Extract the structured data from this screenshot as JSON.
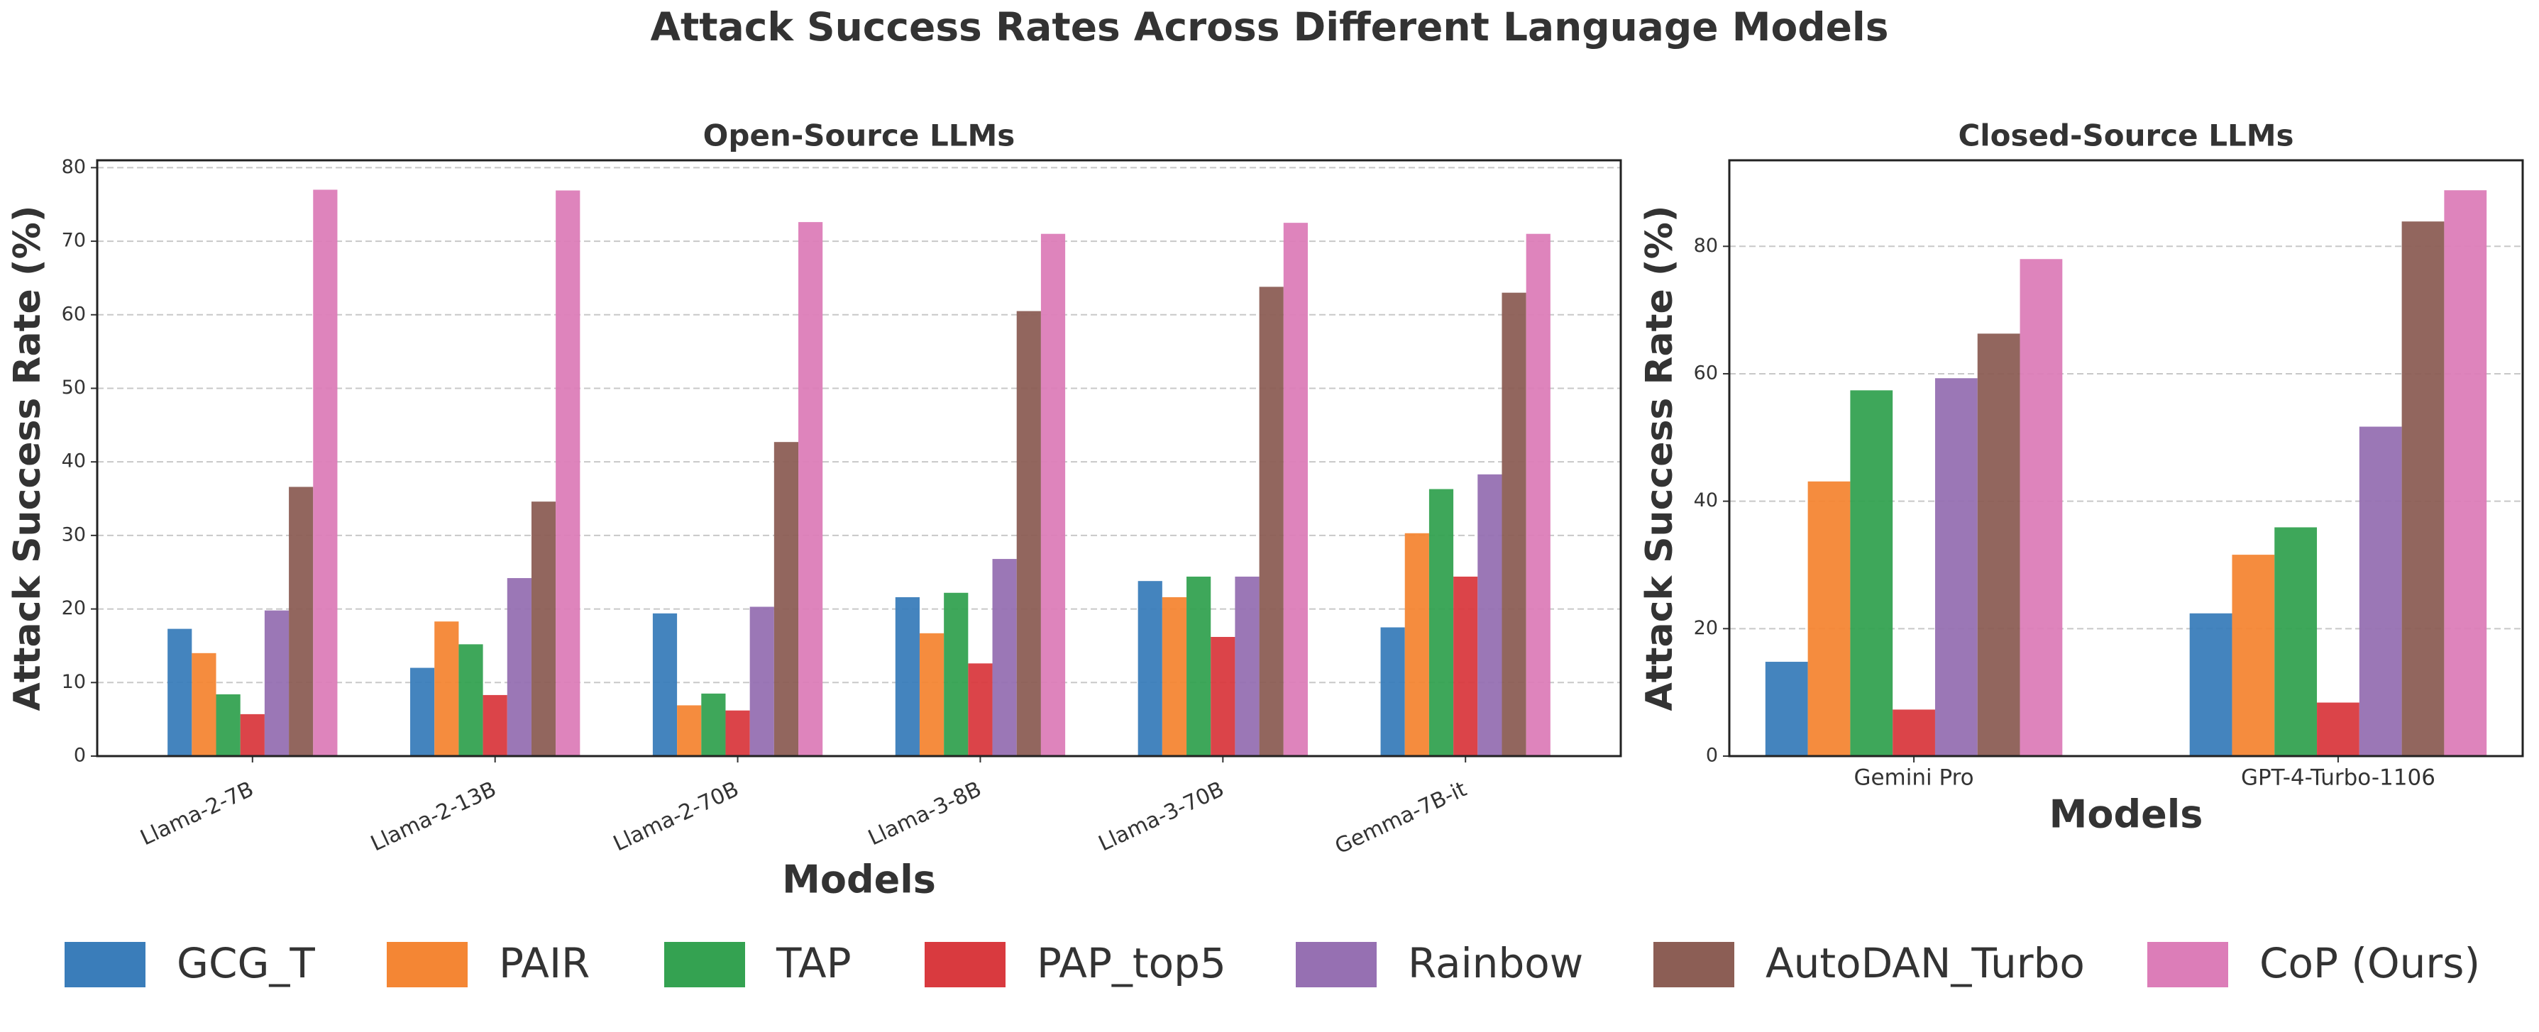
{
  "title": "Attack Success Rates Across Different Language Models",
  "chart_data": [
    {
      "type": "bar",
      "title": "Open-Source LLMs",
      "x_label": "Models",
      "y_label": "Attack Success Rate (%)",
      "categories": [
        "Llama-2-7B",
        "Llama-2-13B",
        "Llama-2-70B",
        "Llama-3-8B",
        "Llama-3-70B",
        "Gemma-7B-it"
      ],
      "series": [
        {
          "name": "GCG_T",
          "color": "#3a7dba",
          "values": [
            17.3,
            12.0,
            19.4,
            21.6,
            23.8,
            17.5
          ]
        },
        {
          "name": "PAIR",
          "color": "#f48634",
          "values": [
            14.0,
            18.3,
            6.9,
            16.7,
            21.6,
            30.3
          ]
        },
        {
          "name": "TAP",
          "color": "#34a251",
          "values": [
            8.4,
            15.2,
            8.5,
            22.2,
            24.4,
            36.3
          ]
        },
        {
          "name": "PAP_top5",
          "color": "#d93a3f",
          "values": [
            5.7,
            8.3,
            6.2,
            12.6,
            16.2,
            24.4
          ]
        },
        {
          "name": "Rainbow",
          "color": "#9670b2",
          "values": [
            19.8,
            24.2,
            20.3,
            26.8,
            24.4,
            38.3
          ]
        },
        {
          "name": "AutoDAN_Turbo",
          "color": "#8c5e55",
          "values": [
            36.6,
            34.6,
            42.7,
            60.5,
            63.8,
            63.0
          ]
        },
        {
          "name": "CoP (Ours)",
          "color": "#dc7db8",
          "values": [
            77.0,
            76.9,
            72.6,
            71.0,
            72.5,
            71.0
          ]
        }
      ],
      "ylim": [
        0,
        81
      ],
      "yticks": [
        0,
        10,
        20,
        30,
        40,
        50,
        60,
        70,
        80
      ],
      "grid": true,
      "x_label_rotation": -25
    },
    {
      "type": "bar",
      "title": "Closed-Source LLMs",
      "x_label": "Models",
      "y_label": "Attack Success Rate (%)",
      "categories": [
        "Gemini Pro",
        "GPT-4-Turbo-1106"
      ],
      "series": [
        {
          "name": "GCG_T",
          "color": "#3a7dba",
          "values": [
            14.8,
            22.4
          ]
        },
        {
          "name": "PAIR",
          "color": "#f48634",
          "values": [
            43.1,
            31.6
          ]
        },
        {
          "name": "TAP",
          "color": "#34a251",
          "values": [
            57.4,
            35.9
          ]
        },
        {
          "name": "PAP_top5",
          "color": "#d93a3f",
          "values": [
            7.3,
            8.4
          ]
        },
        {
          "name": "Rainbow",
          "color": "#9670b2",
          "values": [
            59.3,
            51.7
          ]
        },
        {
          "name": "AutoDAN_Turbo",
          "color": "#8c5e55",
          "values": [
            66.3,
            83.9
          ]
        },
        {
          "name": "CoP (Ours)",
          "color": "#dc7db8",
          "values": [
            78.0,
            88.8
          ]
        }
      ],
      "ylim": [
        0,
        93.5
      ],
      "yticks": [
        0,
        20,
        40,
        60,
        80
      ],
      "grid": true,
      "x_label_rotation": 0
    }
  ]
}
